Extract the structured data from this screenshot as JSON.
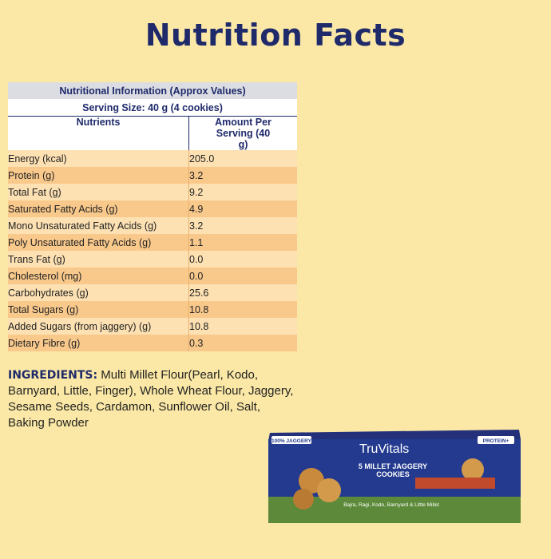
{
  "header": {
    "title": "Nutrition Facts"
  },
  "table": {
    "caption": "Nutritional Information (Approx Values)",
    "serving": "Serving Size: 40 g (4 cookies)",
    "columns": [
      "Nutrients",
      "Amount Per Serving (40 g)"
    ],
    "rows": [
      [
        "Energy (kcal)",
        "205.0"
      ],
      [
        "Protein (g)",
        "3.2"
      ],
      [
        "Total Fat (g)",
        "9.2"
      ],
      [
        "Saturated Fatty Acids (g)",
        "4.9"
      ],
      [
        "Mono Unsaturated Fatty Acids (g)",
        "3.2"
      ],
      [
        "Poly Unsaturated Fatty Acids (g)",
        "1.1"
      ],
      [
        "Trans Fat (g)",
        "0.0"
      ],
      [
        "Cholesterol (mg)",
        "0.0"
      ],
      [
        "Carbohydrates (g)",
        "25.6"
      ],
      [
        "Total Sugars (g)",
        "10.8"
      ],
      [
        "Added Sugars (from jaggery) (g)",
        "10.8"
      ],
      [
        "Dietary Fibre (g)",
        "0.3"
      ]
    ]
  },
  "ingredients": {
    "label": "INGREDIENTS:",
    "text": "Multi Millet Flour(Pearl, Kodo, Barnyard, Little, Finger), Whole Wheat Flour, Jaggery, Sesame Seeds, Cardamon, Sunflower Oil, Salt, Baking Powder"
  },
  "product": {
    "badge": "100% JAGGERY",
    "brand": "TruVitals",
    "name_line1": "5 MILLET JAGGERY",
    "name_line2": "COOKIES",
    "protein": "PROTEIN+",
    "millets": "Bajra, Ragi, Kodo, Barnyard & Little Millet"
  }
}
